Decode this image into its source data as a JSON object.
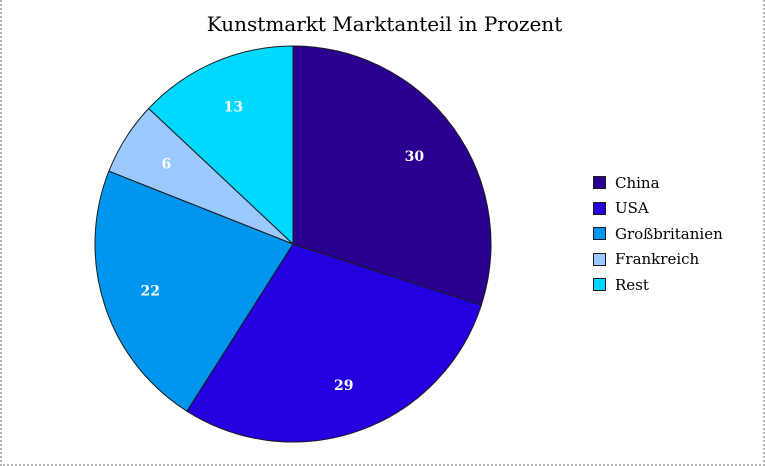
{
  "chart_data": {
    "type": "pie",
    "title": "Kunstmarkt Marktanteil in Prozent",
    "categories": [
      "China",
      "USA",
      "Großbritanien",
      "Frankreich",
      "Rest"
    ],
    "values": [
      30,
      29,
      22,
      6,
      13
    ],
    "colors": [
      "#2a0090",
      "#2400e0",
      "#0096f0",
      "#99c9ff",
      "#00d9ff"
    ],
    "data_labels": [
      "30",
      "29",
      "22",
      "6",
      "13"
    ],
    "legend_position": "right",
    "start_angle": "12 o'clock",
    "direction": "clockwise"
  }
}
